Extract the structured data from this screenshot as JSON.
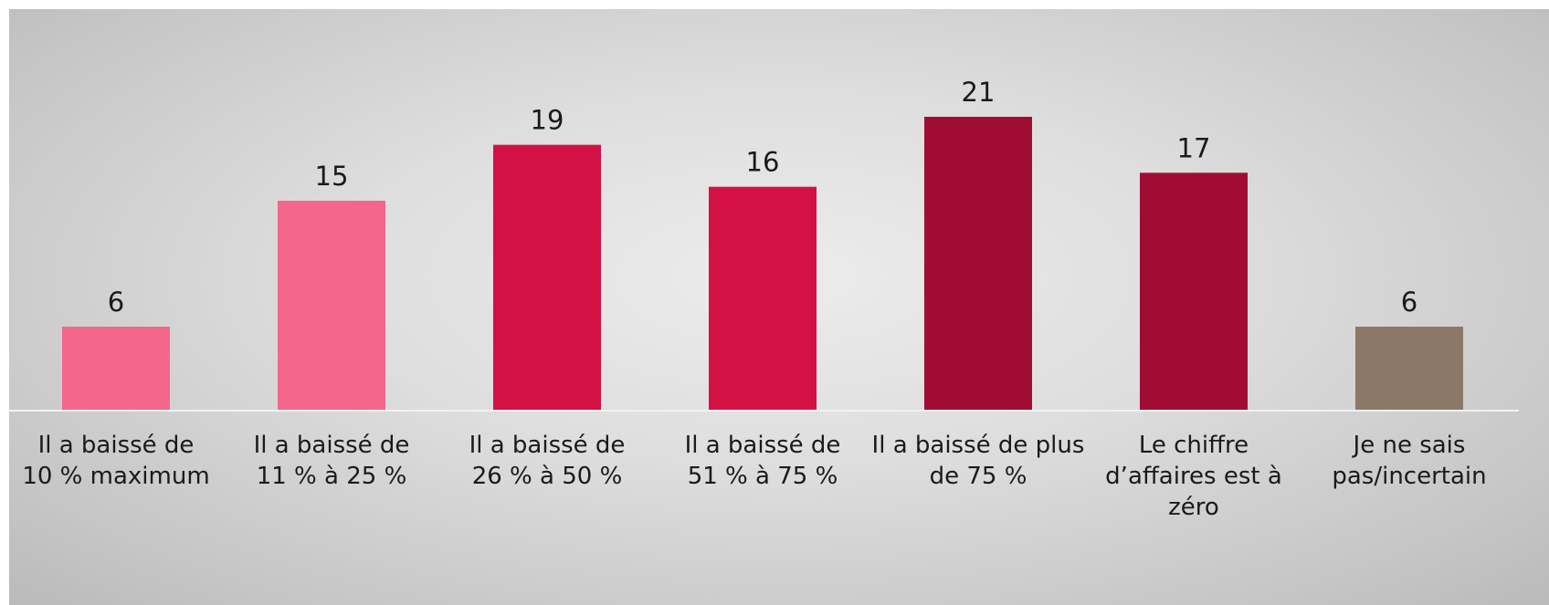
{
  "chart_data": {
    "type": "bar",
    "title": "",
    "xlabel": "",
    "ylabel": "",
    "categories": [
      [
        "Il a baissé de",
        "10 % maximum"
      ],
      [
        "Il a baissé de",
        "11 % à 25 %"
      ],
      [
        "Il a baissé de",
        "26 % à 50 %"
      ],
      [
        "Il a baissé de",
        "51 % à 75 %"
      ],
      [
        "Il a baissé de plus",
        "de 75 %"
      ],
      [
        "Le chiffre",
        "d’affaires est à",
        "zéro"
      ],
      [
        "Je ne sais",
        "pas/incertain"
      ]
    ],
    "values": [
      6,
      15,
      19,
      16,
      21,
      17,
      6
    ],
    "colors": [
      "#f4668c",
      "#f4668c",
      "#d31145",
      "#d31145",
      "#a10c35",
      "#a10c35",
      "#8b7867"
    ],
    "ylim": [
      0,
      21
    ],
    "grid": false,
    "legend": "none",
    "axis_color": "#f2f2f2"
  }
}
